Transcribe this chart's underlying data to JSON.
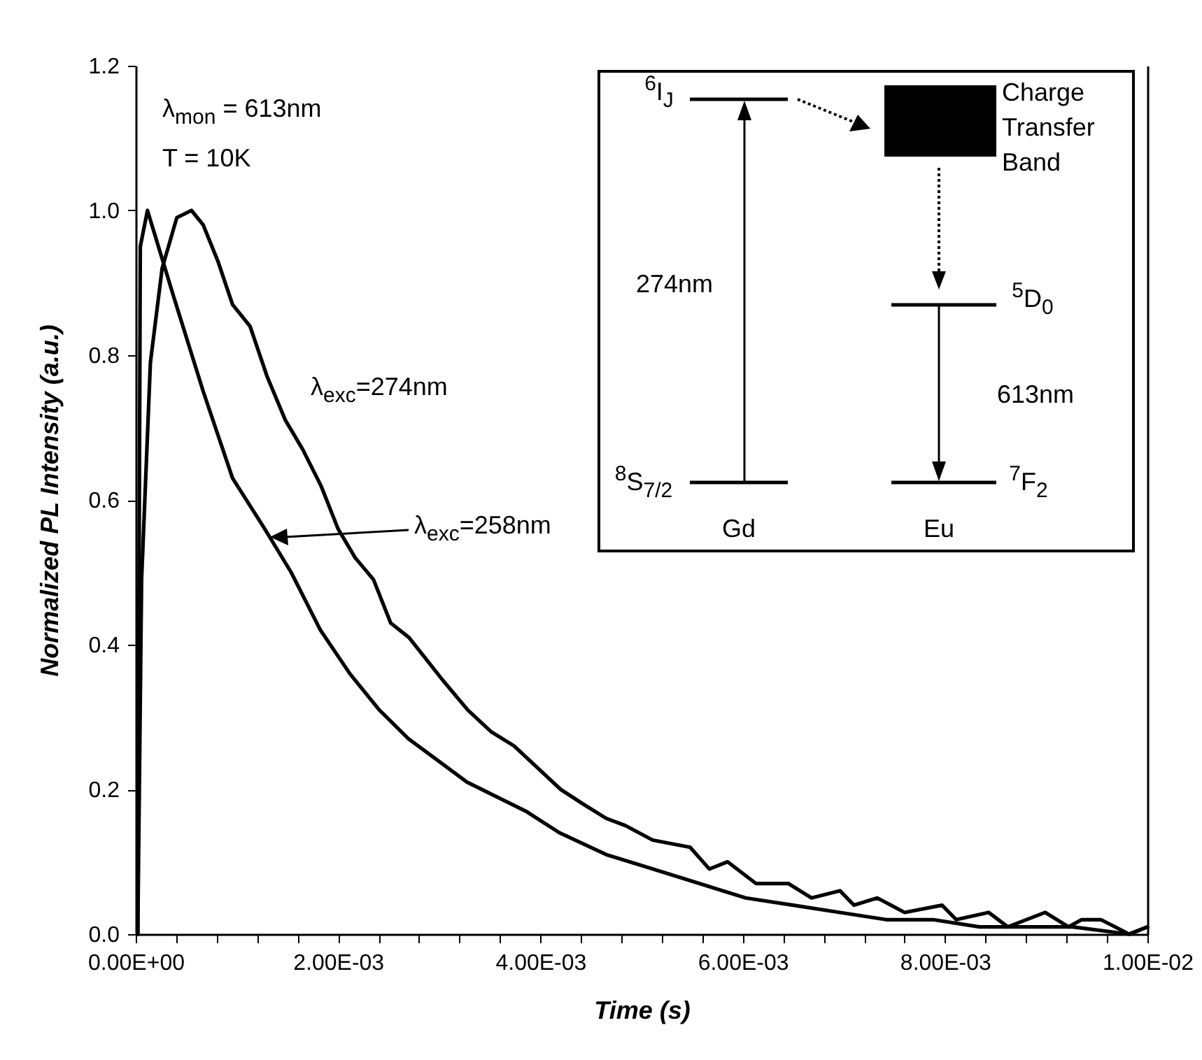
{
  "chart_data": {
    "type": "line",
    "xlabel": "Time (s)",
    "ylabel": "Normalized PL Intensity (a.u.)",
    "xlim": [
      0,
      0.01
    ],
    "ylim": [
      0,
      1.2
    ],
    "xticks": [
      {
        "value": 0,
        "label": "0.00E+00"
      },
      {
        "value": 0.0004,
        "label": null
      },
      {
        "value": 0.0008,
        "label": null
      },
      {
        "value": 0.0012,
        "label": null
      },
      {
        "value": 0.0016,
        "label": null
      },
      {
        "value": 0.002,
        "label": "2.00E-03"
      },
      {
        "value": 0.0024,
        "label": null
      },
      {
        "value": 0.0028,
        "label": null
      },
      {
        "value": 0.0032,
        "label": null
      },
      {
        "value": 0.0036,
        "label": null
      },
      {
        "value": 0.004,
        "label": "4.00E-03"
      },
      {
        "value": 0.0044,
        "label": null
      },
      {
        "value": 0.0048,
        "label": null
      },
      {
        "value": 0.0052,
        "label": null
      },
      {
        "value": 0.0056,
        "label": null
      },
      {
        "value": 0.006,
        "label": "6.00E-03"
      },
      {
        "value": 0.0064,
        "label": null
      },
      {
        "value": 0.0068,
        "label": null
      },
      {
        "value": 0.0072,
        "label": null
      },
      {
        "value": 0.0076,
        "label": null
      },
      {
        "value": 0.008,
        "label": "8.00E-03"
      },
      {
        "value": 0.0084,
        "label": null
      },
      {
        "value": 0.0088,
        "label": null
      },
      {
        "value": 0.0092,
        "label": null
      },
      {
        "value": 0.0096,
        "label": null
      },
      {
        "value": 0.01,
        "label": "1.00E-02"
      }
    ],
    "yticks": [
      {
        "value": 0,
        "label": "0.0"
      },
      {
        "value": 0.2,
        "label": "0.2"
      },
      {
        "value": 0.4,
        "label": "0.4"
      },
      {
        "value": 0.6,
        "label": "0.6"
      },
      {
        "value": 0.8,
        "label": "0.8"
      },
      {
        "value": 1,
        "label": "1.0"
      },
      {
        "value": 1.2,
        "label": "1.2"
      }
    ],
    "marker": "none",
    "line_style": "solid",
    "series": [
      {
        "name": "λ$_{exc}$=274nm",
        "color": "#000000",
        "x": [
          2e-05,
          5.8e-05,
          0.000145,
          0.000261,
          0.000406,
          0.000551,
          0.000667,
          0.000812,
          0.000957,
          0.00113,
          0.0013,
          0.00148,
          0.00165,
          0.00183,
          0.002,
          0.00217,
          0.00235,
          0.00252,
          0.0027,
          0.00287,
          0.00304,
          0.00328,
          0.00351,
          0.00374,
          0.00397,
          0.0042,
          0.00442,
          0.00465,
          0.00484,
          0.00511,
          0.00548,
          0.00567,
          0.00585,
          0.00613,
          0.00645,
          0.00668,
          0.00696,
          0.0071,
          0.00733,
          0.0076,
          0.00797,
          0.00811,
          0.00843,
          0.00862,
          0.00899,
          0.00922,
          0.00935,
          0.00954,
          0.00982,
          0.01
        ],
        "values": [
          0,
          0.49,
          0.79,
          0.92,
          0.99,
          1.0,
          0.98,
          0.93,
          0.87,
          0.84,
          0.77,
          0.71,
          0.67,
          0.62,
          0.56,
          0.52,
          0.49,
          0.43,
          0.41,
          0.38,
          0.35,
          0.31,
          0.28,
          0.26,
          0.23,
          0.2,
          0.18,
          0.16,
          0.15,
          0.13,
          0.12,
          0.09,
          0.1,
          0.07,
          0.07,
          0.05,
          0.06,
          0.04,
          0.05,
          0.03,
          0.04,
          0.02,
          0.03,
          0.01,
          0.03,
          0.01,
          0.02,
          0.02,
          0.0,
          0.01
        ]
      },
      {
        "name": "λ$_{exc}$=258nm",
        "color": "#000000",
        "x": [
          2e-05,
          4.5e-05,
          0.000116,
          0.000377,
          0.000667,
          0.000957,
          0.001275,
          0.001536,
          0.001826,
          0.002116,
          0.002406,
          0.002696,
          0.002986,
          0.003275,
          0.003565,
          0.003855,
          0.00419,
          0.00465,
          0.00511,
          0.00557,
          0.00603,
          0.0065,
          0.00696,
          0.00742,
          0.00788,
          0.00834,
          0.0088,
          0.00926,
          0.00982,
          0.01
        ],
        "values": [
          0,
          0.95,
          1.0,
          0.88,
          0.75,
          0.63,
          0.56,
          0.5,
          0.42,
          0.36,
          0.31,
          0.27,
          0.24,
          0.21,
          0.19,
          0.17,
          0.14,
          0.11,
          0.09,
          0.07,
          0.05,
          0.04,
          0.03,
          0.02,
          0.02,
          0.01,
          0.01,
          0.01,
          0.0,
          0.01
        ]
      }
    ],
    "annotations": [
      "λ$_{mon}$ = 613nm",
      "T = 10K",
      "$^{6}$I$_{J}$",
      "$^{8}$S$_{7/2}$",
      "274nm",
      "Gd",
      "Charge Transfer Band",
      "$^{5}$D$_{0}$",
      "613nm",
      "$^{7}$F$_{2}$",
      "Eu"
    ]
  }
}
